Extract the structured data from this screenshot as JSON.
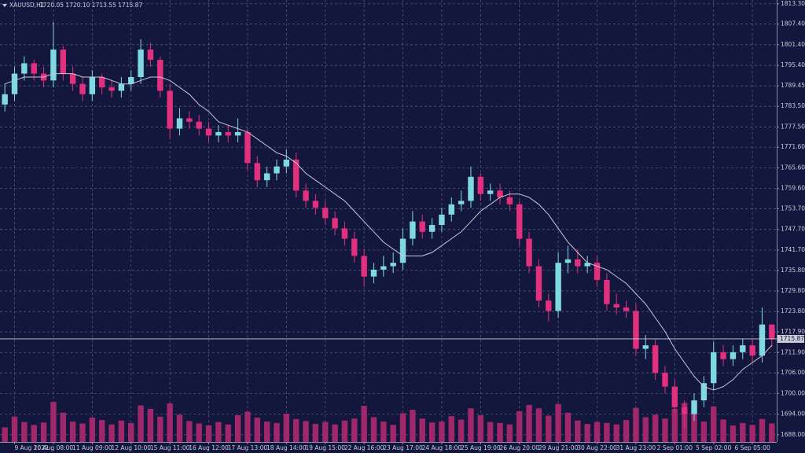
{
  "chart_data": {
    "type": "candlestick",
    "title": "XAUUSD,H1",
    "quote": "1720.05 1720.10 1713.55 1715.87",
    "categories": [
      null,
      "9 Aug 2022",
      null,
      null,
      null,
      "10 Aug 08:00",
      null,
      null,
      null,
      "11 Aug 09:00",
      null,
      null,
      null,
      "12 Aug 10:00",
      null,
      null,
      null,
      "15 Aug 11:00",
      null,
      null,
      null,
      "16 Aug 12:00",
      null,
      null,
      null,
      "17 Aug 13:00",
      null,
      null,
      null,
      "18 Aug 14:00",
      null,
      null,
      null,
      "19 Aug 15:00",
      null,
      null,
      null,
      "22 Aug 16:00",
      null,
      null,
      null,
      "23 Aug 17:00",
      null,
      null,
      null,
      "24 Aug 18:00",
      null,
      null,
      null,
      "25 Aug 19:00",
      null,
      null,
      null,
      "26 Aug 20:00",
      null,
      null,
      null,
      "29 Aug 21:00",
      null,
      null,
      null,
      "30 Aug 22:00",
      null,
      null,
      null,
      "31 Aug 23:00",
      null,
      null,
      null,
      "2 Sep 01:00",
      null,
      null,
      null,
      "5 Sep 02:00",
      null,
      null,
      null,
      "6 Sep 05:00",
      null,
      null
    ],
    "open": [
      1784,
      1787,
      1793,
      1796,
      1793,
      1791,
      1800,
      1793,
      1790,
      1787,
      1792,
      1789,
      1788,
      1790,
      1792,
      1800,
      1797,
      1788,
      1777,
      1780,
      1779,
      1777,
      1775,
      1776,
      1775,
      1776,
      1767,
      1762,
      1764,
      1766,
      1768,
      1759,
      1756,
      1754,
      1751,
      1748,
      1745,
      1740,
      1734,
      1736,
      1737,
      1738,
      1745,
      1750,
      1747,
      1749,
      1752,
      1755,
      1756,
      1763,
      1758,
      1759,
      1757,
      1755,
      1745,
      1737,
      1727,
      1724,
      1738,
      1739,
      1737,
      1738,
      1733,
      1726,
      1725,
      1724,
      1713,
      1714,
      1706,
      1702,
      1696,
      1694,
      1698,
      1703,
      1712,
      1710,
      1712,
      1714,
      1711,
      1720.05
    ],
    "high": [
      1790,
      1795,
      1798,
      1797,
      1795,
      1808,
      1801,
      1795,
      1792,
      1794,
      1793,
      1791,
      1792,
      1794,
      1803,
      1802,
      1798,
      1790,
      1783,
      1782,
      1781,
      1779,
      1778,
      1778,
      1780,
      1777,
      1769,
      1766,
      1768,
      1771,
      1770,
      1761,
      1758,
      1756,
      1753,
      1750,
      1747,
      1742,
      1738,
      1740,
      1741,
      1748,
      1753,
      1752,
      1751,
      1754,
      1757,
      1759,
      1766,
      1764,
      1761,
      1761,
      1759,
      1756,
      1747,
      1739,
      1729,
      1741,
      1743,
      1742,
      1740,
      1740,
      1735,
      1729,
      1727,
      1726,
      1717,
      1716,
      1708,
      1704,
      1698,
      1700,
      1705,
      1715,
      1714,
      1714,
      1716,
      1716,
      1725,
      1720.1
    ],
    "low": [
      1782,
      1785,
      1791,
      1791,
      1789,
      1789,
      1791,
      1788,
      1785,
      1785,
      1787,
      1786,
      1786,
      1788,
      1790,
      1795,
      1786,
      1774,
      1775,
      1777,
      1775,
      1773,
      1773,
      1773,
      1773,
      1765,
      1760,
      1760,
      1762,
      1764,
      1757,
      1754,
      1752,
      1749,
      1746,
      1743,
      1738,
      1731,
      1732,
      1734,
      1735,
      1736,
      1743,
      1745,
      1745,
      1747,
      1750,
      1753,
      1754,
      1756,
      1756,
      1755,
      1753,
      1743,
      1735,
      1725,
      1721,
      1722,
      1735,
      1735,
      1735,
      1731,
      1724,
      1723,
      1722,
      1711,
      1710,
      1704,
      1700,
      1694,
      1690,
      1692,
      1696,
      1701,
      1708,
      1708,
      1710,
      1709,
      1709,
      1713.55
    ],
    "close": [
      1787,
      1793,
      1796,
      1793,
      1791,
      1800,
      1793,
      1790,
      1787,
      1792,
      1789,
      1788,
      1790,
      1792,
      1800,
      1797,
      1788,
      1777,
      1780,
      1779,
      1777,
      1775,
      1776,
      1775,
      1776,
      1767,
      1762,
      1764,
      1766,
      1768,
      1759,
      1756,
      1754,
      1751,
      1748,
      1745,
      1740,
      1734,
      1736,
      1737,
      1738,
      1745,
      1750,
      1747,
      1749,
      1752,
      1755,
      1756,
      1763,
      1758,
      1759,
      1757,
      1755,
      1745,
      1737,
      1727,
      1724,
      1738,
      1739,
      1737,
      1738,
      1733,
      1726,
      1725,
      1724,
      1713,
      1714,
      1706,
      1702,
      1696,
      1694,
      1698,
      1703,
      1712,
      1710,
      1712,
      1714,
      1711,
      1720.05,
      1715.87
    ],
    "volume": [
      3000,
      5200,
      4100,
      3500,
      4000,
      8200,
      6000,
      4200,
      3800,
      5000,
      4500,
      3600,
      4400,
      3900,
      7500,
      6800,
      5200,
      7900,
      5600,
      4300,
      3800,
      3400,
      4100,
      3600,
      5500,
      6200,
      5000,
      4200,
      3900,
      5800,
      4700,
      4300,
      3700,
      4100,
      3600,
      4400,
      4800,
      7400,
      5100,
      4200,
      3500,
      5900,
      6600,
      4800,
      4000,
      4200,
      5300,
      4600,
      6900,
      5500,
      4100,
      3900,
      3600,
      6300,
      7600,
      6900,
      5400,
      7800,
      6000,
      4400,
      3700,
      4100,
      3900,
      3600,
      4500,
      7000,
      5100,
      5600,
      4800,
      6800,
      8000,
      6400,
      4200,
      7300,
      4600,
      3400,
      3900,
      3500,
      4700,
      3800
    ],
    "ma": {
      "color": "#c8c8d2",
      "values": [
        1790,
        1791,
        1792,
        1792,
        1792,
        1793,
        1793,
        1793,
        1792,
        1792,
        1792,
        1791,
        1790,
        1790,
        1791,
        1792,
        1792,
        1791,
        1789,
        1787,
        1784,
        1782,
        1779,
        1778,
        1777,
        1776,
        1774,
        1772,
        1770,
        1769,
        1767,
        1764,
        1762,
        1760,
        1758,
        1756,
        1753,
        1750,
        1747,
        1744,
        1742,
        1740,
        1740,
        1740,
        1741,
        1743,
        1745,
        1747,
        1750,
        1753,
        1755,
        1757,
        1758,
        1758,
        1757,
        1755,
        1752,
        1748,
        1744,
        1741,
        1738,
        1737,
        1736,
        1734,
        1732,
        1729,
        1726,
        1722,
        1718,
        1713,
        1709,
        1705,
        1702,
        1701,
        1702,
        1704,
        1707,
        1709,
        1711,
        1714
      ]
    },
    "up_color": "#7fd8e2",
    "down_color": "#e2307e",
    "volume_color": "#a0286a",
    "last_price": 1715.87,
    "ylim": [
      1685.9,
      1814.4
    ],
    "yticks": [
      {
        "value": 1813.3,
        "label": "1813.30"
      },
      {
        "value": 1807.4,
        "label": "1807.40"
      },
      {
        "value": 1801.4,
        "label": "1801.40"
      },
      {
        "value": 1795.4,
        "label": "1795.40"
      },
      1789.45,
      {
        "value": 1783.5,
        "label": "1783.50"
      },
      {
        "value": 1777.5,
        "label": "1777.50"
      },
      {
        "value": 1771.6,
        "label": "1771.60"
      },
      {
        "value": 1765.6,
        "label": "1765.60"
      },
      {
        "value": 1759.6,
        "label": "1759.60"
      },
      {
        "value": 1753.7,
        "label": "1753.70"
      },
      {
        "value": 1747.7,
        "label": "1747.70"
      },
      {
        "value": 1741.7,
        "label": "1741.70"
      },
      {
        "value": 1735.8,
        "label": "1735.80"
      },
      {
        "value": 1729.8,
        "label": "1729.80"
      },
      {
        "value": 1723.8,
        "label": "1723.80"
      },
      {
        "value": 1717.9,
        "label": "1717.90"
      },
      {
        "value": 1711.9,
        "label": "1711.90"
      },
      {
        "value": 1706,
        "label": "1706.00"
      },
      {
        "value": 1700,
        "label": "1700.00"
      },
      {
        "value": 1694,
        "label": "1694.00"
      },
      {
        "value": 1688,
        "label": "1688.00"
      }
    ],
    "grid": true
  }
}
